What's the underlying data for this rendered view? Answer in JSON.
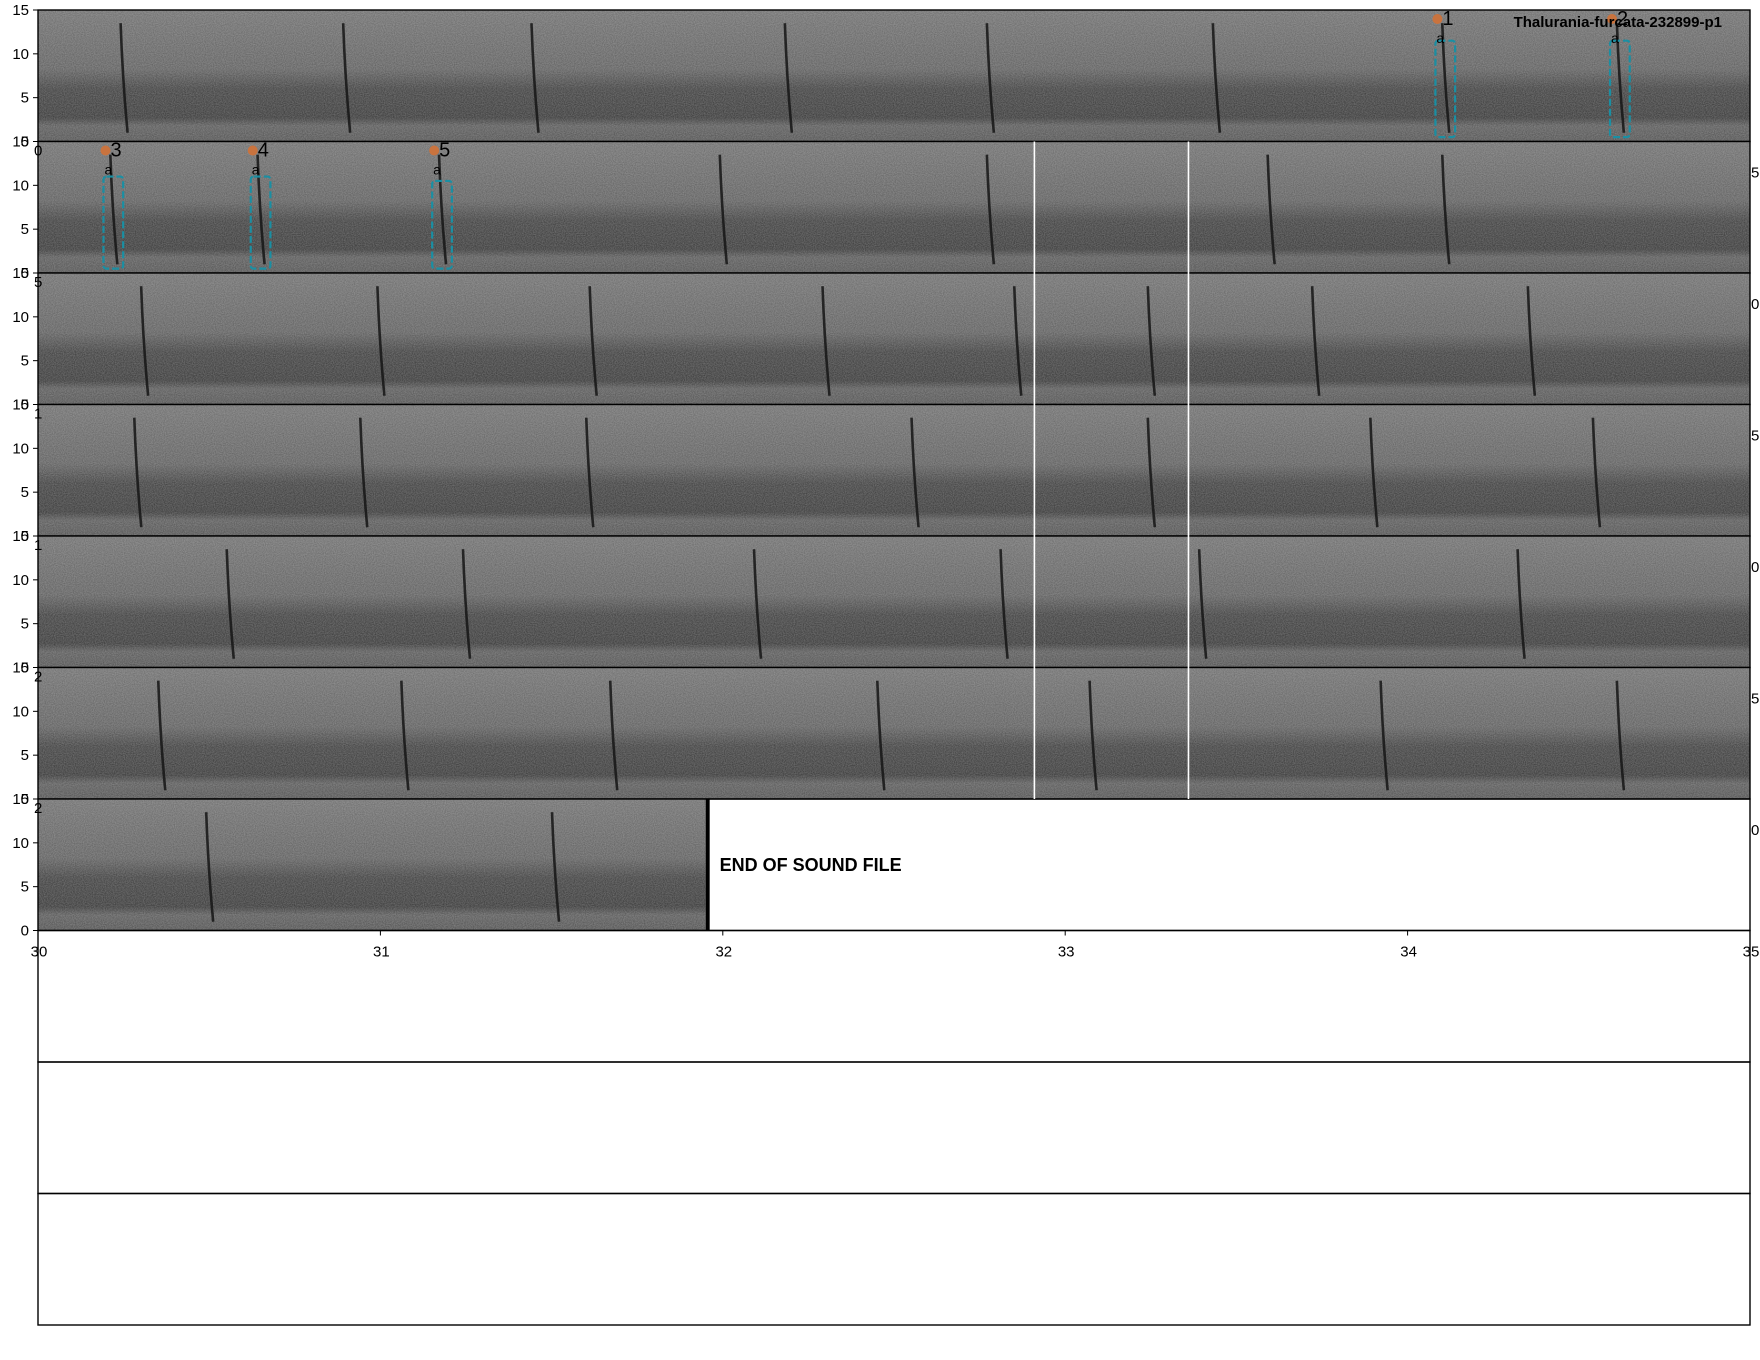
{
  "chart_data": {
    "type": "spectrogram",
    "title": "Thalurania-furcata-232899-p1",
    "ylabel": "",
    "xlabel": "",
    "yunit": "kHz",
    "xunit": "s",
    "ylim": [
      0,
      15
    ],
    "y_ticks": [
      0,
      5,
      10,
      15
    ],
    "seconds_per_row": 5,
    "rows": [
      {
        "x_range": [
          0,
          5
        ],
        "visible_x_ticks": []
      },
      {
        "x_range": [
          5,
          10
        ],
        "visible_x_ticks": [
          "0",
          "5"
        ]
      },
      {
        "x_range": [
          10,
          15
        ],
        "visible_x_ticks": [
          "5",
          "0"
        ]
      },
      {
        "x_range": [
          15,
          20
        ],
        "visible_x_ticks": [
          "1",
          "5"
        ]
      },
      {
        "x_range": [
          20,
          25
        ],
        "visible_x_ticks": [
          "1",
          "0"
        ]
      },
      {
        "x_range": [
          25,
          30
        ],
        "visible_x_ticks": [
          "2",
          "5"
        ]
      },
      {
        "x_range": [
          30,
          35
        ],
        "visible_x_ticks": [
          "2",
          "0"
        ]
      }
    ],
    "final_x_ticks": [
      "30",
      "31",
      "32",
      "33",
      "34",
      "35"
    ],
    "end_of_file_time": 31.95,
    "end_of_file_label": "END OF SOUND FILE",
    "empty_rows_after_end": 3,
    "annotations": [
      {
        "id": "1",
        "call": "a",
        "t_start": 4.09,
        "t_end": 4.13,
        "f_low": 0.5,
        "f_high": 11.5,
        "color": "#1a8fa3"
      },
      {
        "id": "2",
        "call": "a",
        "t_start": 4.6,
        "t_end": 4.64,
        "f_low": 0.5,
        "f_high": 11.5,
        "color": "#1a8fa3"
      },
      {
        "id": "3",
        "call": "a",
        "t_start": 5.2,
        "t_end": 5.24,
        "f_low": 0.5,
        "f_high": 11.0,
        "color": "#1a8fa3"
      },
      {
        "id": "4",
        "call": "a",
        "t_start": 5.63,
        "t_end": 5.67,
        "f_low": 0.5,
        "f_high": 11.0,
        "color": "#1a8fa3"
      },
      {
        "id": "5",
        "call": "a",
        "t_start": 6.16,
        "t_end": 6.2,
        "f_low": 0.5,
        "f_high": 10.5,
        "color": "#1a8fa3"
      }
    ],
    "calls": [
      [
        0.25,
        0.9,
        1.45,
        2.19,
        2.78,
        3.44,
        4.11,
        4.62
      ],
      [
        5.22,
        5.65,
        6.18,
        7.0,
        7.78,
        8.6,
        9.11
      ],
      [
        0.31,
        1.0,
        1.62,
        2.3,
        2.86,
        3.25,
        3.73,
        4.36
      ],
      [
        0.29,
        0.95,
        1.61,
        2.56,
        3.25,
        3.9,
        4.55
      ],
      [
        0.56,
        1.25,
        2.1,
        2.82,
        3.4,
        4.33
      ],
      [
        0.36,
        1.07,
        1.68,
        2.46,
        3.08,
        3.93,
        4.62
      ],
      [
        0.5,
        1.51
      ]
    ],
    "marker_color": "#c9733e",
    "box_color": "#1a8fa3",
    "spectrogram_colors": {
      "background": "#5a5a5a",
      "band": "#3a3a3a",
      "call": "#151515"
    }
  }
}
